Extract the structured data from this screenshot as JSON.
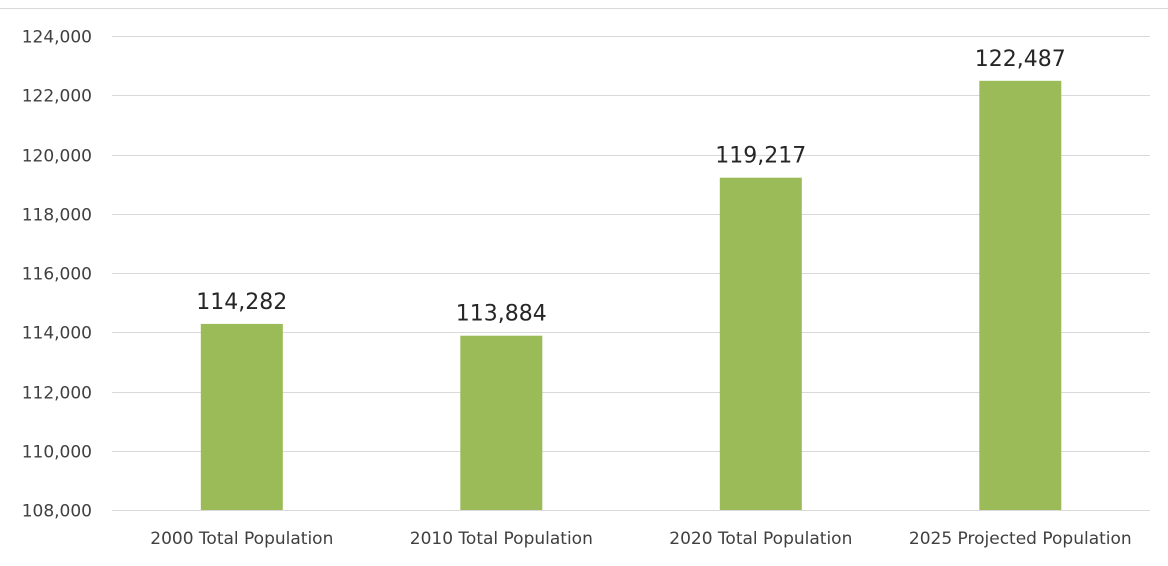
{
  "colors": {
    "bar": "#9bbb59",
    "gridline": "#d9d9d9",
    "axis_text": "#404040",
    "data_label": "#262626"
  },
  "chart_data": {
    "type": "bar",
    "categories": [
      "2000 Total Population",
      "2010 Total Population",
      "2020 Total Population",
      "2025 Projected Population"
    ],
    "values": [
      114282,
      113884,
      119217,
      122487
    ],
    "data_labels": [
      "114,282",
      "113,884",
      "119,217",
      "122,487"
    ],
    "ylim": [
      108000,
      124000
    ],
    "y_ticks": [
      108000,
      110000,
      112000,
      114000,
      116000,
      118000,
      120000,
      122000,
      124000
    ],
    "y_tick_labels": [
      "108,000",
      "110,000",
      "112,000",
      "114,000",
      "116,000",
      "118,000",
      "120,000",
      "122,000",
      "124,000"
    ],
    "grid": true,
    "legend": "none",
    "title": "",
    "xlabel": "",
    "ylabel": ""
  }
}
